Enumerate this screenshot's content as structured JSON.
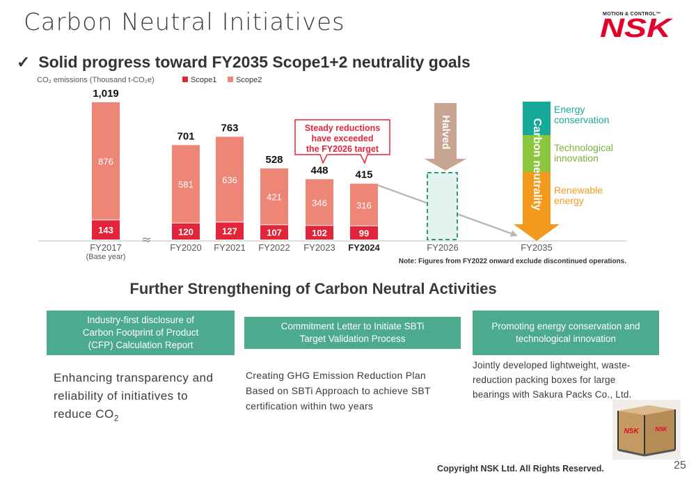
{
  "title": "Carbon Neutral Initiatives",
  "subtitle_check": "✓",
  "subtitle": "Solid progress toward FY2035 Scope1+2 neutrality goals",
  "logo": {
    "tagline": "MOTION & CONTROL™",
    "name": "NSK",
    "color": "#e4002b"
  },
  "colors": {
    "scope1": "#e2253a",
    "scope2": "#ee8677",
    "teal": "#4caa8e",
    "halved": "#c8a592",
    "orange": "#f39a1e",
    "green": "#8cc63f",
    "cyan": "#17a997"
  },
  "chart_data": {
    "type": "bar",
    "stacked": true,
    "ylabel": "CO₂ emissions (Thousand t-CO₂e)",
    "categories": [
      "FY2017",
      "FY2020",
      "FY2021",
      "FY2022",
      "FY2023",
      "FY2024"
    ],
    "category_note": "(Base year)",
    "extra_categories": [
      "FY2026",
      "FY2035"
    ],
    "series": [
      {
        "name": "Scope1",
        "values": [
          143,
          120,
          127,
          107,
          102,
          99
        ]
      },
      {
        "name": "Scope2",
        "values": [
          876,
          581,
          636,
          421,
          346,
          316
        ]
      }
    ],
    "totals": [
      "1,019",
      "701",
      "763",
      "528",
      "448",
      "415"
    ],
    "total_values": [
      1019,
      701,
      763,
      528,
      448,
      415
    ],
    "callout": [
      "Steady reductions",
      "have exceeded",
      "the FY2026 target"
    ],
    "halved_label": "Halved",
    "neutrality_label": "Carbon neutrality",
    "neutrality_items": [
      [
        "Energy",
        "conservation"
      ],
      [
        "Technological",
        "innovation"
      ],
      [
        "Renewable",
        "energy"
      ]
    ],
    "note": "Note: Figures from FY2022 onward exclude discontinued operations.",
    "axis_break": "≈"
  },
  "section_title": "Further Strengthening of Carbon Neutral Activities",
  "activities": [
    {
      "header": [
        "Industry-first disclosure of",
        "Carbon Footprint of Product",
        "(CFP) Calculation Report"
      ],
      "description": [
        "Enhancing transparency and",
        "reliability of initiatives to",
        "reduce CO"
      ],
      "subscript": "2"
    },
    {
      "header": [
        "Commitment Letter to Initiate SBTi",
        "Target Validation Process"
      ],
      "description": [
        "Creating GHG Emission Reduction Plan",
        "Based on SBTi Approach to achieve SBT",
        "certification within two years"
      ]
    },
    {
      "header": [
        "Promoting energy conservation and",
        "technological innovation"
      ],
      "description": [
        "Jointly developed lightweight, waste-",
        "reduction packing boxes for large",
        "bearings with Sakura Packs Co., Ltd."
      ]
    }
  ],
  "crate_label": "NSK",
  "copyright": "Copyright NSK Ltd. All Rights Reserved.",
  "page_number": "25"
}
